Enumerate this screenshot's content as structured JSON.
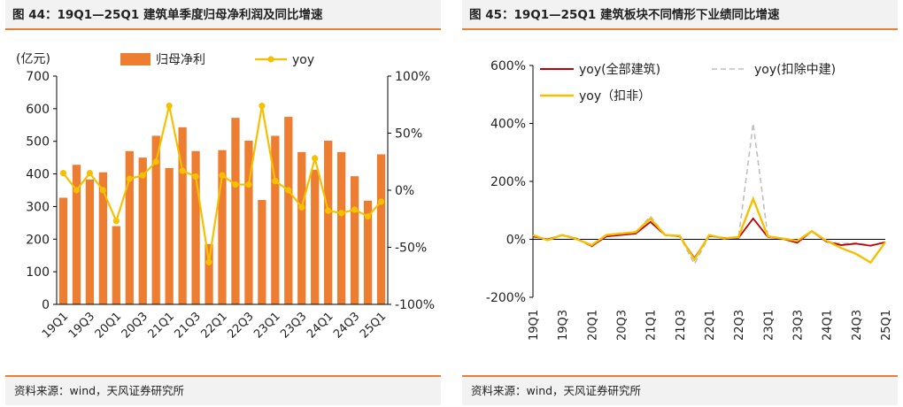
{
  "left_panel": {
    "title": "图 44：19Q1—25Q1 建筑单季度归母净利润及同比增速",
    "source": "资料来源：wind，天风证券研究所"
  },
  "right_panel": {
    "title": "图 45：19Q1—25Q1 建筑板块不同情形下业绩同比增速",
    "source": "资料来源：wind，天风证券研究所"
  },
  "chart_data": [
    {
      "type": "bar",
      "title": "",
      "y_unit_label": "(亿元)",
      "categories": [
        "19Q1",
        "19Q2",
        "19Q3",
        "19Q4",
        "20Q1",
        "20Q2",
        "20Q3",
        "20Q4",
        "21Q1",
        "21Q2",
        "21Q3",
        "21Q4",
        "22Q1",
        "22Q2",
        "22Q3",
        "22Q4",
        "23Q1",
        "23Q2",
        "23Q3",
        "23Q4",
        "24Q1",
        "24Q2",
        "24Q3",
        "24Q4",
        "25Q1"
      ],
      "x_tick_labels": [
        "19Q1",
        "19Q3",
        "20Q1",
        "20Q3",
        "21Q1",
        "21Q3",
        "22Q1",
        "22Q3",
        "23Q1",
        "23Q3",
        "24Q1",
        "24Q3",
        "25Q1"
      ],
      "series": [
        {
          "name": "归母净利",
          "kind": "bar",
          "axis": "left",
          "color": "#ed7d31",
          "values": [
            327,
            428,
            383,
            405,
            240,
            470,
            450,
            517,
            418,
            543,
            470,
            185,
            473,
            572,
            502,
            320,
            517,
            575,
            467,
            413,
            502,
            467,
            393,
            318,
            460
          ]
        },
        {
          "name": "yoy",
          "kind": "line",
          "axis": "right",
          "color": "#f5c000",
          "values": [
            15,
            0,
            15,
            0,
            -27,
            10,
            13,
            25,
            74,
            17,
            12,
            -63,
            13,
            5,
            5,
            74,
            8,
            0,
            -15,
            28,
            -18,
            -20,
            -17,
            -23,
            -10
          ]
        }
      ],
      "ylim_left": [
        0,
        700
      ],
      "yticks_left": [
        "0",
        "100",
        "200",
        "300",
        "400",
        "500",
        "600",
        "700"
      ],
      "ylim_right": [
        -100,
        100
      ],
      "yticks_right": [
        "-100%",
        "-50%",
        "0%",
        "50%",
        "100%"
      ],
      "legend": "top"
    },
    {
      "type": "line",
      "title": "",
      "categories": [
        "19Q1",
        "19Q2",
        "19Q3",
        "19Q4",
        "20Q1",
        "20Q2",
        "20Q3",
        "20Q4",
        "21Q1",
        "21Q2",
        "21Q3",
        "21Q4",
        "22Q1",
        "22Q2",
        "22Q3",
        "22Q4",
        "23Q1",
        "23Q2",
        "23Q3",
        "23Q4",
        "24Q1",
        "24Q2",
        "24Q3",
        "24Q4",
        "25Q1"
      ],
      "x_tick_labels": [
        "19Q1",
        "19Q3",
        "20Q1",
        "20Q3",
        "21Q1",
        "21Q3",
        "22Q1",
        "22Q3",
        "23Q1",
        "23Q3",
        "24Q1",
        "24Q3",
        "25Q1"
      ],
      "series": [
        {
          "name": "yoy(全部建筑)",
          "color": "#c00000",
          "dash": false,
          "values": [
            10,
            0,
            14,
            2,
            -23,
            10,
            15,
            20,
            60,
            15,
            10,
            -65,
            12,
            5,
            5,
            72,
            8,
            2,
            -12,
            28,
            -8,
            -20,
            -15,
            -22,
            -10
          ]
        },
        {
          "name": "yoy(扣除中建)",
          "color": "#bfbfbf",
          "dash": true,
          "values": [
            12,
            0,
            16,
            3,
            -26,
            12,
            17,
            22,
            80,
            15,
            10,
            -85,
            10,
            5,
            4,
            400,
            10,
            3,
            -8,
            28,
            -6,
            -15,
            -12,
            -20,
            -10
          ]
        },
        {
          "name": "yoy（扣非）",
          "color": "#f5c000",
          "dash": false,
          "values": [
            15,
            -3,
            15,
            0,
            -20,
            15,
            20,
            25,
            72,
            15,
            12,
            -70,
            15,
            3,
            8,
            140,
            10,
            3,
            -5,
            28,
            -5,
            -30,
            -50,
            -80,
            -10
          ]
        }
      ],
      "ylim": [
        -200,
        600
      ],
      "yticks": [
        "-200%",
        "0%",
        "200%",
        "400%",
        "600%"
      ],
      "legend": "top"
    }
  ]
}
